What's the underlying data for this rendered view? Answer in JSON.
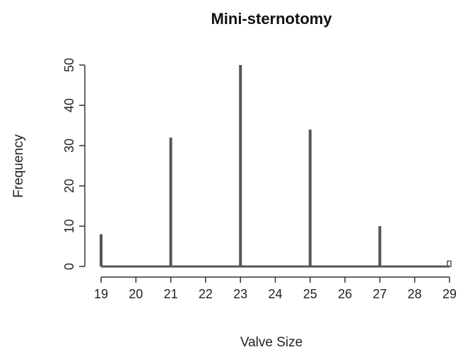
{
  "chart_data": {
    "type": "bar",
    "title": "Mini-sternotomy",
    "xlabel": "Valve Size",
    "ylabel": "Frequency",
    "x": [
      19,
      21,
      23,
      25,
      27,
      29
    ],
    "values": [
      8,
      32,
      50,
      34,
      10,
      1
    ],
    "xlim": [
      19,
      29
    ],
    "ylim": [
      0,
      50
    ],
    "xticks": [
      19,
      20,
      21,
      22,
      23,
      24,
      25,
      26,
      27,
      28,
      29
    ],
    "yticks": [
      0,
      10,
      20,
      30,
      40,
      50
    ],
    "grid": false,
    "bar_color": "#555555"
  }
}
